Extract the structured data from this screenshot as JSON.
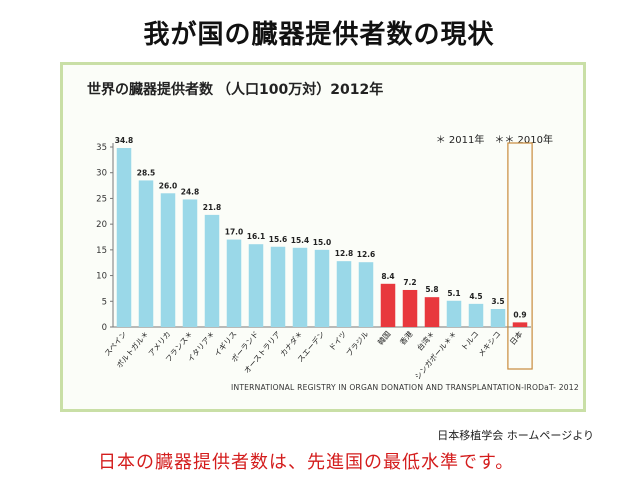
{
  "slide": {
    "title": "我が国の臓器提供者数の現状",
    "credit": "日本移植学会 ホームページより",
    "conclusion": "日本の臓器提供者数は、先進国の最低水準です。"
  },
  "colors": {
    "default_bar": "#9ad8e8",
    "highlight_bar": "#e8383d",
    "japan_box": "#c88b3d",
    "frame": "#c9dfa6"
  },
  "chart_data": {
    "type": "bar",
    "title": "世界の臓器提供者数",
    "subtitle": "（人口100万対）2012年",
    "note": "＊ 2011年　＊＊ 2010年",
    "source": "INTERNATIONAL REGISTRY IN ORGAN DONATION AND TRANSPLANTATION-IRODaT- 2012",
    "ylim": [
      0,
      35
    ],
    "yticks": [
      0,
      5,
      10,
      15,
      20,
      25,
      30,
      35
    ],
    "grid": false,
    "categories": [
      "スペイン",
      "ポルトガル＊",
      "アメリカ",
      "フランス＊",
      "イタリア＊",
      "イギリス",
      "ポーランド",
      "オーストラリア",
      "カナダ＊",
      "スエーデン",
      "ドイツ",
      "ブラジル",
      "韓国",
      "香港",
      "台湾＊",
      "シンガポール＊＊",
      "トルコ",
      "メキシコ",
      "日本"
    ],
    "values": [
      34.8,
      28.5,
      26.0,
      24.8,
      21.8,
      17.0,
      16.1,
      15.6,
      15.4,
      15.0,
      12.8,
      12.6,
      8.4,
      7.2,
      5.8,
      5.1,
      4.5,
      3.5,
      0.9
    ],
    "value_labels": [
      "34.8",
      "28.5",
      "26.0",
      "24.8",
      "21.8",
      "17.0",
      "16.1",
      "15.6",
      "15.4",
      "15.0",
      "12.8",
      "12.6",
      "8.4",
      "7.2",
      "5.8",
      "5.1",
      "4.5",
      "3.5",
      "0.9"
    ],
    "highlighted": [
      "韓国",
      "香港",
      "台湾＊",
      "日本"
    ],
    "boxed": "日本"
  }
}
